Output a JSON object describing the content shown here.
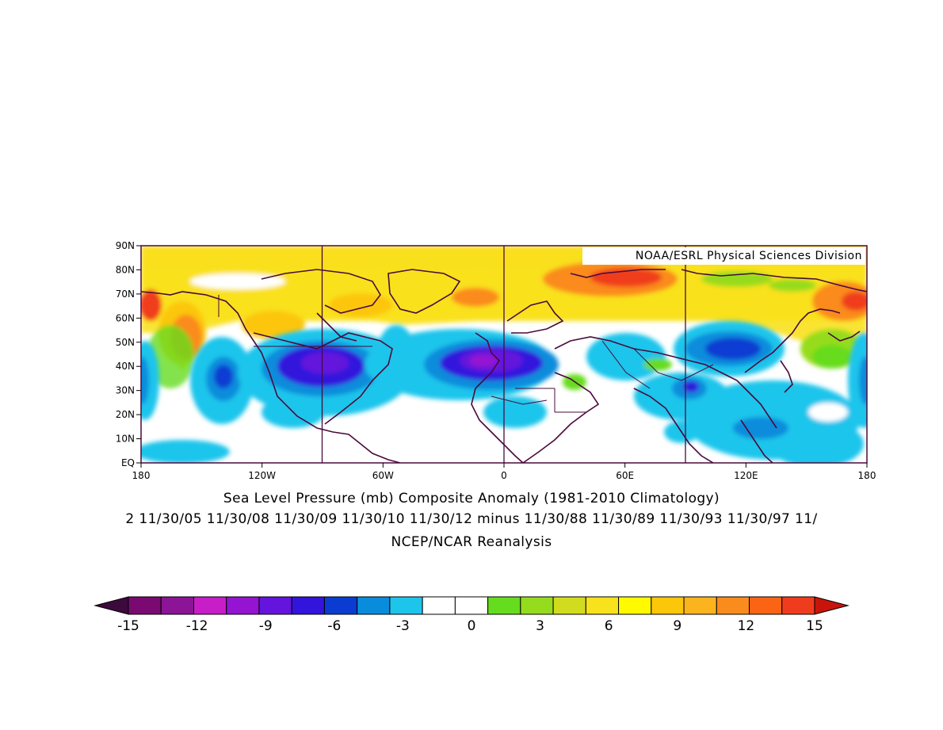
{
  "map": {
    "credit": "NOAA/ESRL Physical Sciences Division",
    "lat_ticks": [
      "90N",
      "80N",
      "70N",
      "60N",
      "50N",
      "40N",
      "30N",
      "20N",
      "10N",
      "EQ"
    ],
    "lon_ticks": [
      "180",
      "120W",
      "60W",
      "0",
      "60E",
      "120E",
      "180"
    ],
    "meridian_lines": [
      "90W",
      "0",
      "90E"
    ],
    "colors": {
      "pos_strong": "#e73c1e",
      "pos_mid": "#fa8b1d",
      "pos_warm": "#fcc60a",
      "pos_light": "#f8e11d",
      "neg_strong": "#7a14c7",
      "neg_mid": "#3214dc",
      "neg_light": "#1ec5eb",
      "neutral": "#ffffff",
      "green": "#66dc1e",
      "coast": "#4a0a3c"
    }
  },
  "titles": {
    "line1": "Sea Level Pressure (mb) Composite Anomaly (1981-2010 Climatology)",
    "line2": "2 11/30/05 11/30/08 11/30/09 11/30/10 11/30/12 minus 11/30/88 11/30/89 11/30/93 11/30/97 11/",
    "line3": "NCEP/NCAR Reanalysis"
  },
  "colorbar": {
    "labels": [
      "-15",
      "-12",
      "-9",
      "-6",
      "-3",
      "0",
      "3",
      "6",
      "9",
      "12",
      "15"
    ],
    "under_color": "#3c0a3c",
    "over_color": "#c8140a",
    "colors": [
      "#7a0a72",
      "#8c1496",
      "#c81ec8",
      "#9414d2",
      "#6414dc",
      "#3214dc",
      "#0a3cd2",
      "#0a8cdc",
      "#1ec5eb",
      "#ffffff",
      "#ffffff",
      "#66dc1e",
      "#96dc1e",
      "#d2dc1e",
      "#f8e11d",
      "#fffa00",
      "#fcc60a",
      "#fcb41e",
      "#fa8b1d",
      "#fa6414",
      "#f03c1e"
    ]
  }
}
